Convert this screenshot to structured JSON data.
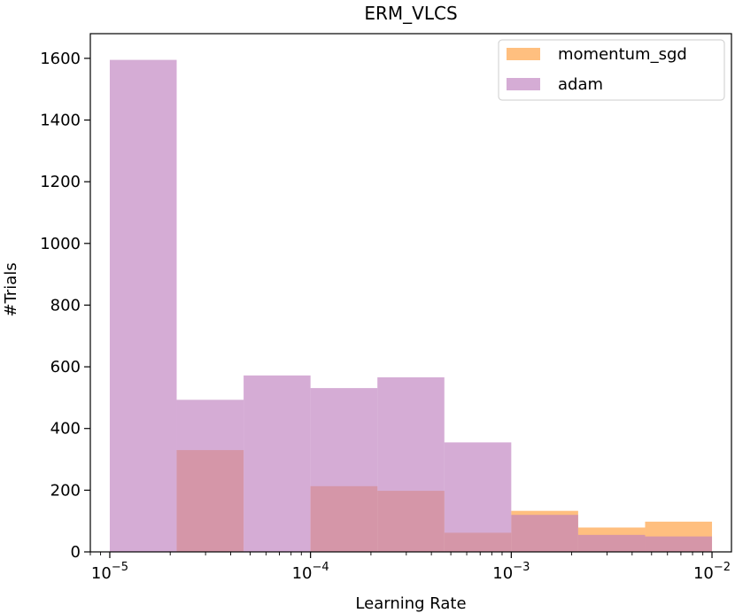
{
  "chart_data": {
    "type": "bar",
    "title": "ERM_VLCS",
    "xlabel": "Learning Rate",
    "ylabel": "#Trials",
    "xscale": "log",
    "xlim": [
      8e-06,
      0.0125
    ],
    "ylim": [
      0,
      1680
    ],
    "yticks": [
      0,
      200,
      400,
      600,
      800,
      1000,
      1200,
      1400,
      1600
    ],
    "xticks": [
      {
        "value": 1e-05,
        "base": "10",
        "exp": "−5"
      },
      {
        "value": 0.0001,
        "base": "10",
        "exp": "−4"
      },
      {
        "value": 0.001,
        "base": "10",
        "exp": "−3"
      },
      {
        "value": 0.01,
        "base": "10",
        "exp": "−2"
      }
    ],
    "bin_edges": [
      1e-05,
      2.154e-05,
      4.642e-05,
      0.0001,
      0.0002154,
      0.0004642,
      0.001,
      0.002154,
      0.004642,
      0.01
    ],
    "legend_position": "top-right",
    "series": [
      {
        "name": "momentum_sgd",
        "color": "#ffbf7f",
        "opacity": 1.0,
        "values": [
          0,
          330,
          0,
          213,
          198,
          62,
          133,
          79,
          98
        ]
      },
      {
        "name": "adam",
        "color": "#bf7fbf",
        "opacity": 0.65,
        "values": [
          1595,
          493,
          572,
          531,
          566,
          355,
          120,
          55,
          50
        ]
      }
    ]
  }
}
